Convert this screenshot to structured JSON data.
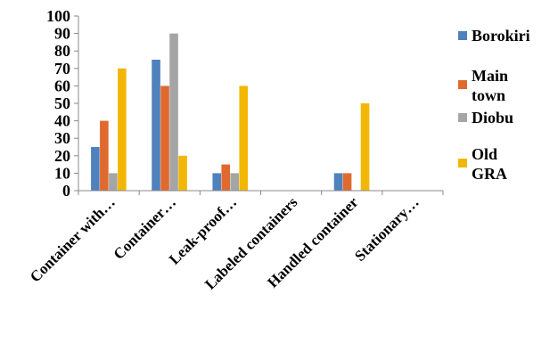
{
  "chart_data": {
    "type": "bar",
    "categories": [
      "Container with…",
      "Container…",
      "Leak-proof…",
      "Labeled containers",
      "Handled container",
      "Stationary…"
    ],
    "series": [
      {
        "name": "Borokiri",
        "color": "#4F81BD",
        "values": [
          25,
          75,
          10,
          0,
          10,
          0
        ]
      },
      {
        "name": "Main town",
        "color": "#E0692E",
        "values": [
          40,
          60,
          15,
          0,
          10,
          0
        ]
      },
      {
        "name": "Diobu",
        "color": "#A5A5A5",
        "values": [
          10,
          90,
          10,
          0,
          0,
          0
        ]
      },
      {
        "name": "Old GRA",
        "color": "#F2B705",
        "values": [
          70,
          20,
          60,
          0,
          50,
          0
        ]
      }
    ],
    "yticks": [
      0,
      10,
      20,
      30,
      40,
      50,
      60,
      70,
      80,
      90,
      100
    ],
    "ylim": [
      0,
      100
    ],
    "grid": false,
    "legend_position": "right"
  }
}
